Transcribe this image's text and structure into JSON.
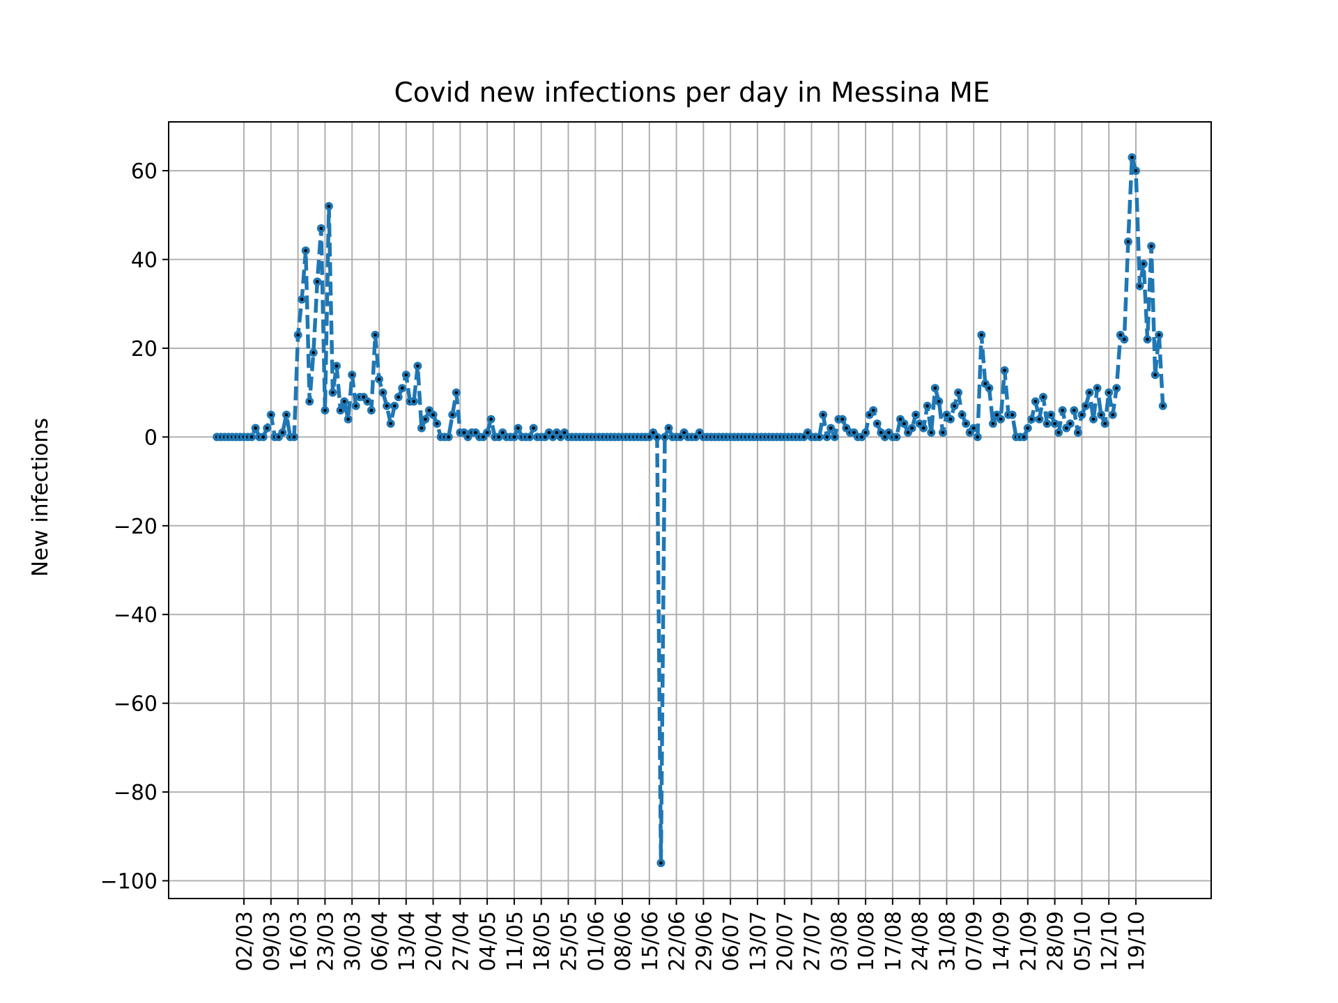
{
  "chart_data": {
    "type": "line",
    "title": "Covid new infections per day in Messina ME",
    "xlabel": "",
    "ylabel": "New infections",
    "ylim": [
      -104,
      71
    ],
    "y_ticks": [
      -100,
      -80,
      -60,
      -40,
      -20,
      0,
      20,
      40,
      60
    ],
    "y_tick_labels": [
      "−100",
      "−80",
      "−60",
      "−40",
      "−20",
      "0",
      "20",
      "40",
      "60"
    ],
    "x_tick_labels": [
      "02/03",
      "09/03",
      "16/03",
      "23/03",
      "30/03",
      "06/04",
      "13/04",
      "20/04",
      "27/04",
      "04/05",
      "11/05",
      "18/05",
      "25/05",
      "01/06",
      "08/06",
      "15/06",
      "22/06",
      "29/06",
      "06/07",
      "13/07",
      "20/07",
      "27/07",
      "03/08",
      "10/08",
      "17/08",
      "24/08",
      "31/08",
      "07/09",
      "14/09",
      "21/09",
      "28/09",
      "05/10",
      "12/10",
      "19/10"
    ],
    "grid": true,
    "series": [
      {
        "style": "dashed",
        "color": "#1f77b4",
        "marker_color": "#000000",
        "start_date": "2020-02-24",
        "values": [
          0,
          0,
          0,
          0,
          0,
          0,
          0,
          0,
          0,
          0,
          2,
          0,
          0,
          2,
          5,
          0,
          0,
          1,
          5,
          0,
          0,
          23,
          31,
          42,
          8,
          19,
          35,
          47,
          6,
          52,
          10,
          16,
          6,
          8,
          4,
          14,
          7,
          9,
          9,
          8,
          6,
          23,
          13,
          10,
          7,
          3,
          7,
          9,
          11,
          14,
          8,
          8,
          16,
          2,
          4,
          6,
          5,
          3,
          0,
          0,
          0,
          5,
          10,
          1,
          1,
          0,
          1,
          1,
          0,
          0,
          1,
          4,
          0,
          0,
          1,
          0,
          0,
          0,
          2,
          0,
          0,
          0,
          2,
          0,
          0,
          0,
          1,
          0,
          1,
          0,
          1,
          0,
          0,
          0,
          0,
          0,
          0,
          0,
          0,
          0,
          0,
          0,
          0,
          0,
          0,
          0,
          0,
          0,
          0,
          0,
          0,
          0,
          0,
          1,
          0,
          -96,
          0,
          2,
          0,
          0,
          0,
          1,
          0,
          0,
          0,
          1,
          0,
          0,
          0,
          0,
          0,
          0,
          0,
          0,
          0,
          0,
          0,
          0,
          0,
          0,
          0,
          0,
          0,
          0,
          0,
          0,
          0,
          0,
          0,
          0,
          0,
          0,
          0,
          1,
          0,
          0,
          0,
          5,
          0,
          2,
          0,
          4,
          4,
          2,
          1,
          1,
          0,
          0,
          1,
          5,
          6,
          3,
          1,
          0,
          1,
          0,
          0,
          4,
          3,
          1,
          2,
          5,
          3,
          2,
          7,
          1,
          11,
          8,
          1,
          5,
          4,
          7,
          10,
          5,
          3,
          1,
          2,
          0,
          23,
          12,
          11,
          3,
          5,
          4,
          15,
          5,
          5,
          0,
          0,
          0,
          2,
          4,
          8,
          4,
          9,
          3,
          5,
          3,
          1,
          6,
          2,
          3,
          6,
          1,
          5,
          7,
          10,
          4,
          11,
          5,
          3,
          10,
          5,
          11,
          23,
          22,
          44,
          63,
          60,
          34,
          39,
          22,
          43,
          14,
          23,
          7
        ]
      }
    ]
  }
}
